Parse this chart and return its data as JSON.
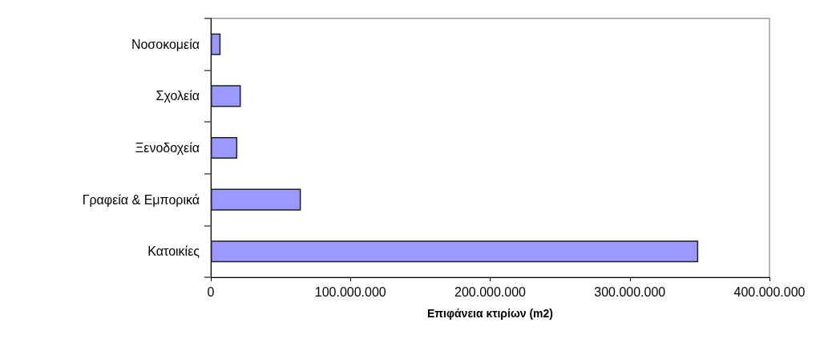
{
  "chart_data": {
    "type": "bar",
    "orientation": "horizontal",
    "xlabel": "Επιφάνεια κτιρίων (m2)",
    "categories": [
      "Νοσοκομεία",
      "Σχολεία",
      "Ξενοδοχεία",
      "Γραφεία & Εμπορικά",
      "Κατοικίες"
    ],
    "values": [
      7000000,
      21500000,
      19000000,
      64500000,
      349000000
    ],
    "color": "#9999ff",
    "xlim": [
      0,
      400000000
    ],
    "xticks": [
      0,
      {
        "value": 100000000,
        "label": "100.000.000"
      },
      {
        "value": 200000000,
        "label": "200.000.000"
      },
      {
        "value": 300000000,
        "label": "300.000.000"
      },
      {
        "value": 400000000,
        "label": "400.000.000"
      }
    ],
    "grid": false
  }
}
